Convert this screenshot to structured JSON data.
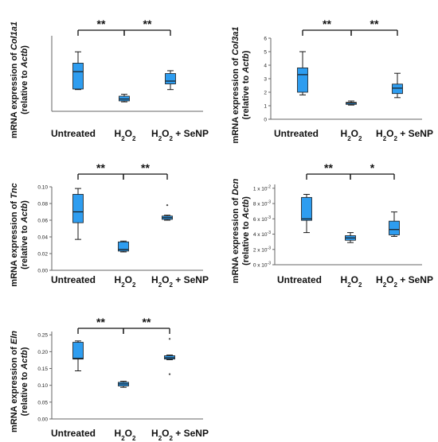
{
  "colors": {
    "box_fill": "#2E9DF0",
    "box_stroke": "#1a1a1a",
    "axis": "#666666",
    "bracket": "#111111"
  },
  "chart_data": [
    {
      "type": "box",
      "ylabel_prefix": "mRNA expression of ",
      "gene": "Col1a1",
      "ylabel_line2_prefix": "(relative to ",
      "ylabel_line2_gene": "Actb",
      "ylabel_line2_suffix": ")",
      "ylim": [
        0,
        40
      ],
      "show_ticks": false,
      "categories": [
        "Untreated",
        "H2O2",
        "H2O2 + SeNP"
      ],
      "boxes": [
        {
          "min": 11.5,
          "q1": 11.8,
          "median": 21,
          "q3": 25.5,
          "max": 31.5,
          "outliers": []
        },
        {
          "min": 5.0,
          "q1": 5.5,
          "median": 6.5,
          "q3": 8.0,
          "max": 9.0,
          "outliers": []
        },
        {
          "min": 11.5,
          "q1": 14.5,
          "median": 16.0,
          "q3": 20.0,
          "max": 21.5,
          "outliers": []
        }
      ],
      "significance": [
        {
          "from": 0,
          "to": 1,
          "label": "**"
        },
        {
          "from": 1,
          "to": 2,
          "label": "**"
        }
      ]
    },
    {
      "type": "box",
      "ylabel_prefix": "mRNA expression of ",
      "gene": "Col3a1",
      "ylabel_line2_prefix": "(relative to ",
      "ylabel_line2_gene": "Actb",
      "ylabel_line2_suffix": ")",
      "ylim": [
        0,
        6
      ],
      "yticks": [
        {
          "v": 0,
          "t": "0"
        },
        {
          "v": 1,
          "t": "1"
        },
        {
          "v": 2,
          "t": "2"
        },
        {
          "v": 3,
          "t": "3"
        },
        {
          "v": 4,
          "t": "4"
        },
        {
          "v": 5,
          "t": "5"
        },
        {
          "v": 6,
          "t": "6"
        }
      ],
      "categories": [
        "Untreated",
        "H2O2",
        "H2O2 + SeNP"
      ],
      "boxes": [
        {
          "min": 1.8,
          "q1": 2.0,
          "median": 3.3,
          "q3": 3.8,
          "max": 5.0,
          "outliers": []
        },
        {
          "min": 1.05,
          "q1": 1.1,
          "median": 1.2,
          "q3": 1.25,
          "max": 1.35,
          "outliers": []
        },
        {
          "min": 1.6,
          "q1": 1.9,
          "median": 2.3,
          "q3": 2.6,
          "max": 3.4,
          "outliers": []
        }
      ],
      "significance": [
        {
          "from": 0,
          "to": 1,
          "label": "**"
        },
        {
          "from": 1,
          "to": 2,
          "label": "**"
        }
      ]
    },
    {
      "type": "box",
      "ylabel_prefix": "mRNA expression of ",
      "gene": "Tnc",
      "ylabel_line2_prefix": "(relative to ",
      "ylabel_line2_gene": "Actb",
      "ylabel_line2_suffix": ")",
      "ylim": [
        0,
        0.1
      ],
      "yticks": [
        {
          "v": 0,
          "t": "0.00"
        },
        {
          "v": 0.02,
          "t": "0.02"
        },
        {
          "v": 0.04,
          "t": "0.04"
        },
        {
          "v": 0.06,
          "t": "0.06"
        },
        {
          "v": 0.08,
          "t": "0.08"
        },
        {
          "v": 0.1,
          "t": "0.10"
        }
      ],
      "categories": [
        "Untreated",
        "H2O2",
        "H2O2 + SeNP"
      ],
      "boxes": [
        {
          "min": 0.037,
          "q1": 0.057,
          "median": 0.07,
          "q3": 0.091,
          "max": 0.098,
          "outliers": []
        },
        {
          "min": 0.022,
          "q1": 0.023,
          "median": 0.025,
          "q3": 0.034,
          "max": 0.035,
          "outliers": []
        },
        {
          "min": 0.06,
          "q1": 0.061,
          "median": 0.063,
          "q3": 0.065,
          "max": 0.066,
          "outliers": [
            0.078
          ]
        }
      ],
      "significance": [
        {
          "from": 0,
          "to": 1,
          "label": "**"
        },
        {
          "from": 1,
          "to": 2,
          "label": "**"
        }
      ]
    },
    {
      "type": "box",
      "ylabel_prefix": "mRNA expression of ",
      "gene": "Dcn",
      "ylabel_line2_prefix": "(relative to ",
      "ylabel_line2_gene": "Actb",
      "ylabel_line2_suffix": ")",
      "ylim": [
        0,
        0.0105
      ],
      "yticks": [
        {
          "v": 0,
          "m": "0 x 10",
          "e": "-3"
        },
        {
          "v": 0.002,
          "m": "2 x 10",
          "e": "-3"
        },
        {
          "v": 0.004,
          "m": "4 x 10",
          "e": "-3"
        },
        {
          "v": 0.006,
          "m": "6 x 10",
          "e": "-3"
        },
        {
          "v": 0.008,
          "m": "8 x 10",
          "e": "-3"
        },
        {
          "v": 0.01,
          "m": "1 x 10",
          "e": "-2"
        }
      ],
      "categories": [
        "Untreated",
        "H2O2",
        "H2O2 + SeNP"
      ],
      "boxes": [
        {
          "min": 0.0042,
          "q1": 0.0058,
          "median": 0.006,
          "q3": 0.0088,
          "max": 0.0092,
          "outliers": []
        },
        {
          "min": 0.0029,
          "q1": 0.0032,
          "median": 0.0035,
          "q3": 0.0038,
          "max": 0.0042,
          "outliers": []
        },
        {
          "min": 0.0037,
          "q1": 0.0039,
          "median": 0.0046,
          "q3": 0.0057,
          "max": 0.0069,
          "outliers": []
        }
      ],
      "significance": [
        {
          "from": 0,
          "to": 1,
          "label": "**"
        },
        {
          "from": 1,
          "to": 2,
          "label": "*"
        }
      ]
    },
    {
      "type": "box",
      "ylabel_prefix": "mRNA expression of ",
      "gene": "Eln",
      "ylabel_line2_prefix": "(relative to ",
      "ylabel_line2_gene": "Actb",
      "ylabel_line2_suffix": ")",
      "ylim": [
        0,
        0.26
      ],
      "yticks": [
        {
          "v": 0,
          "t": "0.00"
        },
        {
          "v": 0.05,
          "t": "0.05"
        },
        {
          "v": 0.1,
          "t": "0.10"
        },
        {
          "v": 0.15,
          "t": "0.15"
        },
        {
          "v": 0.2,
          "t": "0.20"
        },
        {
          "v": 0.25,
          "t": "0.25"
        }
      ],
      "categories": [
        "Untreated",
        "H2O2",
        "H2O2 + SeNP"
      ],
      "boxes": [
        {
          "min": 0.143,
          "q1": 0.178,
          "median": 0.18,
          "q3": 0.228,
          "max": 0.232,
          "outliers": []
        },
        {
          "min": 0.094,
          "q1": 0.098,
          "median": 0.104,
          "q3": 0.109,
          "max": 0.112,
          "outliers": []
        },
        {
          "min": 0.176,
          "q1": 0.178,
          "median": 0.182,
          "q3": 0.188,
          "max": 0.19,
          "outliers": [
            0.238,
            0.133
          ]
        }
      ],
      "significance": [
        {
          "from": 0,
          "to": 1,
          "label": "**"
        },
        {
          "from": 1,
          "to": 2,
          "label": "**"
        }
      ]
    }
  ]
}
